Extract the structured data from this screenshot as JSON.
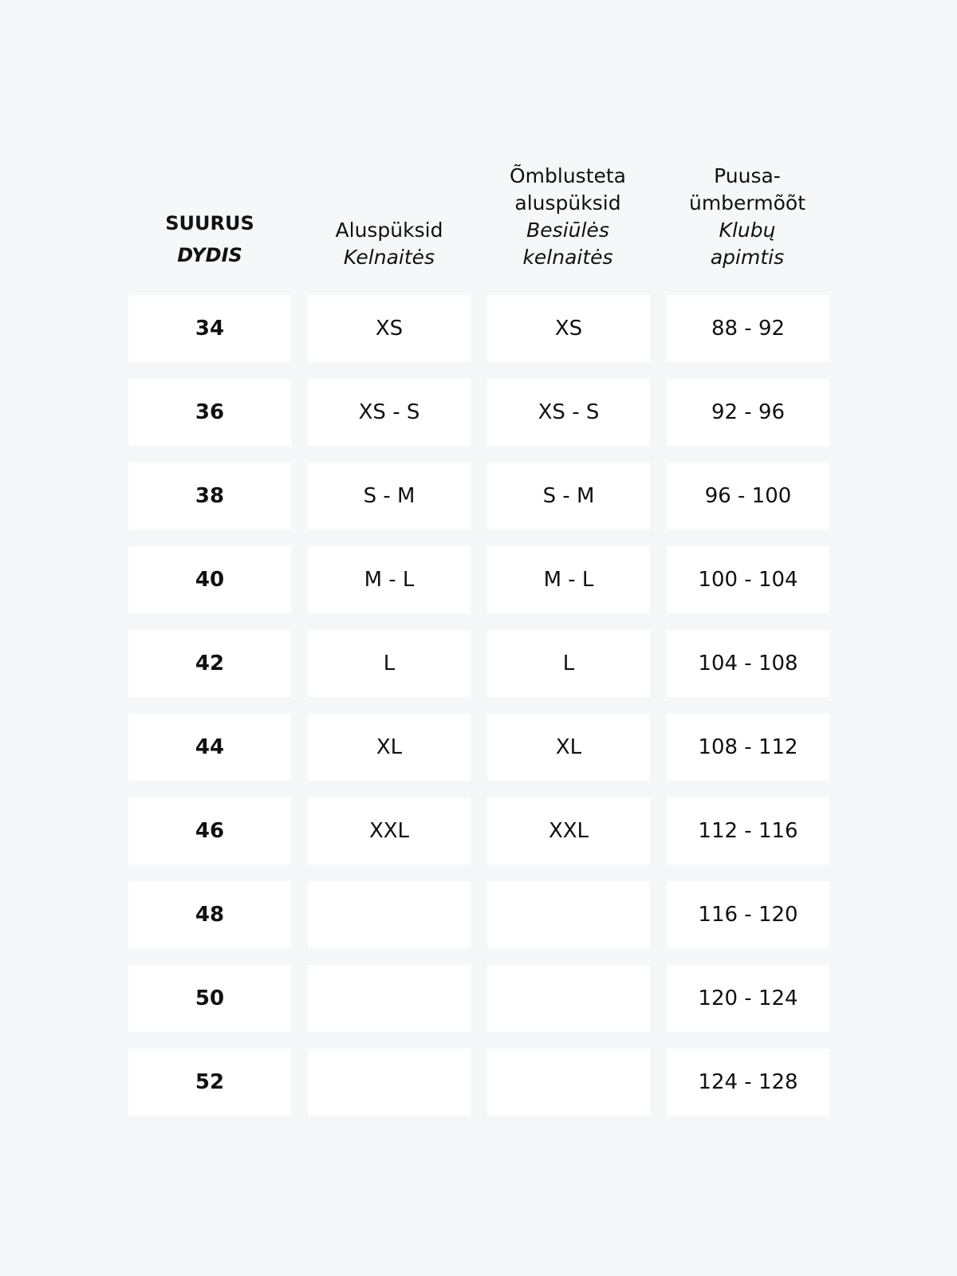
{
  "headers": [
    {
      "primary": "SUURUS",
      "secondary": "DYDIS"
    },
    {
      "primary": "Aluspüksid",
      "secondary": "Kelnaitės"
    },
    {
      "primary_line1": "Õmblusteta",
      "primary_line2": "aluspüksid",
      "secondary_line1": "Besiūlės",
      "secondary_line2": "kelnaitės"
    },
    {
      "primary_line1": "Puusa-",
      "primary_line2": "ümbermõõt",
      "secondary_line1": "Klubų",
      "secondary_line2": "apimtis"
    }
  ],
  "rows": [
    [
      "34",
      "XS",
      "XS",
      "88 - 92"
    ],
    [
      "36",
      "XS - S",
      "XS - S",
      "92 - 96"
    ],
    [
      "38",
      "S - M",
      "S - M",
      "96 - 100"
    ],
    [
      "40",
      "M - L",
      "M - L",
      "100 - 104"
    ],
    [
      "42",
      "L",
      "L",
      "104 - 108"
    ],
    [
      "44",
      "XL",
      "XL",
      "108 - 112"
    ],
    [
      "46",
      "XXL",
      "XXL",
      "112 - 116"
    ],
    [
      "48",
      "",
      "",
      "116 - 120"
    ],
    [
      "50",
      "",
      "",
      "120 - 124"
    ],
    [
      "52",
      "",
      "",
      "124 - 128"
    ]
  ]
}
